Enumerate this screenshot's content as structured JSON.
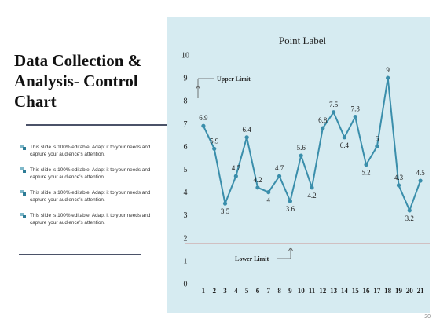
{
  "slide": {
    "title": "Data Collection &\nAnalysis- Control\nChart",
    "bullets": [
      "This slide is 100% editable. Adapt it to your needs and capture your audience's attention.",
      "This slide is 100% editable. Adapt it to your needs and capture your audience's attention.",
      "This slide is 100% editable. Adapt it to your needs and capture your audience's attention.",
      "This slide is 100% editable. Adapt it to your needs and capture your audience's attention."
    ],
    "page_number": "20"
  },
  "colors": {
    "panel": "#d6ebf1",
    "line": "#3a8eab",
    "limit": "#c97a74",
    "text": "#111111"
  },
  "chart_data": {
    "type": "line",
    "title": "Point Label",
    "x": [
      1,
      2,
      3,
      4,
      5,
      6,
      7,
      8,
      9,
      10,
      11,
      12,
      13,
      14,
      15,
      16,
      17,
      18,
      19,
      20,
      21
    ],
    "series": [
      {
        "values": [
          6.9,
          5.9,
          3.5,
          4.7,
          6.4,
          4.2,
          4,
          4.7,
          3.6,
          5.6,
          4.2,
          6.8,
          7.5,
          6.4,
          7.3,
          5.2,
          6,
          9,
          4.3,
          3.2,
          4.5
        ]
      }
    ],
    "data_labels": [
      "6.9",
      "5.9",
      "3.5",
      "4.7",
      "6.4",
      "4.2",
      "4",
      "4.7",
      "3.6",
      "5.6",
      "4.2",
      "6.8",
      "7.5",
      "6.4",
      "7.3",
      "5.2",
      "6",
      "9",
      "4.3",
      "3.2",
      "4.5"
    ],
    "yticks": [
      0,
      1,
      2,
      3,
      4,
      5,
      6,
      7,
      8,
      9,
      10
    ],
    "ylim": [
      0,
      10
    ],
    "upper_limit": {
      "label": "Upper Limit",
      "value": 8.3
    },
    "lower_limit": {
      "label": "Lower Limit",
      "value": 1.75
    },
    "grid": false,
    "legend": "none"
  }
}
